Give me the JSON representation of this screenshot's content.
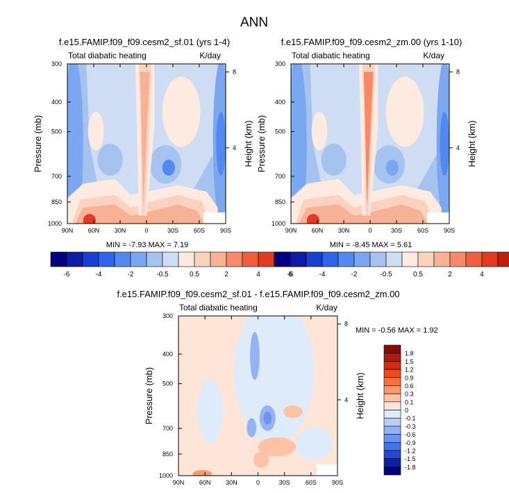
{
  "figure": {
    "main_title": "ANN"
  },
  "chart_data": [
    {
      "type": "heatmap",
      "title": "f.e15.FAMIP.f09_f09.cesm2_sf.01 (yrs 1-4)",
      "left_label": "Total diabatic heating",
      "units_label": "K/day",
      "xlabel": "",
      "ylabel": "Pressure (mb)",
      "right_ylabel": "Height (km)",
      "x_ticks": [
        "90N",
        "60N",
        "30N",
        "0",
        "30S",
        "60S",
        "90S"
      ],
      "xlim": [
        90,
        -90
      ],
      "y_ticks": [
        "300",
        "400",
        "500",
        "700",
        "850",
        "1000"
      ],
      "y_tick_values": [
        300,
        400,
        500,
        700,
        850,
        1000
      ],
      "ylim": [
        300,
        1000
      ],
      "right_ticks": [
        "8",
        "4"
      ],
      "right_tick_values": [
        8,
        4
      ],
      "stats": "MIN = -7.93   MAX =  7.19",
      "min": -7.93,
      "max": 7.19,
      "field": "mean"
    },
    {
      "type": "heatmap",
      "title": "f.e15.FAMIP.f09_f09.cesm2_zm.00 (yrs 1-10)",
      "left_label": "Total diabatic heating",
      "units_label": "K/day",
      "xlabel": "",
      "ylabel": "Pressure (mb)",
      "right_ylabel": "Height (km)",
      "x_ticks": [
        "90N",
        "60N",
        "30N",
        "0",
        "30S",
        "60S",
        "90S"
      ],
      "xlim": [
        90,
        -90
      ],
      "y_ticks": [
        "300",
        "400",
        "500",
        "700",
        "850",
        "1000"
      ],
      "y_tick_values": [
        300,
        400,
        500,
        700,
        850,
        1000
      ],
      "ylim": [
        300,
        1000
      ],
      "right_ticks": [
        "8",
        "4"
      ],
      "right_tick_values": [
        8,
        4
      ],
      "stats": "MIN = -8.45   MAX =  5.61",
      "min": -8.45,
      "max": 5.61,
      "field": "mean"
    },
    {
      "type": "heatmap",
      "title": "f.e15.FAMIP.f09_f09.cesm2_sf.01 - f.e15.FAMIP.f09_f09.cesm2_zm.00",
      "left_label": "Total diabatic heating",
      "units_label": "K/day",
      "xlabel": "",
      "ylabel": "Pressure (mb)",
      "right_ylabel": "Height (km)",
      "x_ticks": [
        "90N",
        "60N",
        "30N",
        "0",
        "30S",
        "60S",
        "90S"
      ],
      "xlim": [
        90,
        -90
      ],
      "y_ticks": [
        "300",
        "400",
        "500",
        "700",
        "850",
        "1000"
      ],
      "y_tick_values": [
        300,
        400,
        500,
        700,
        850,
        1000
      ],
      "ylim": [
        300,
        1000
      ],
      "right_ticks": [
        "8",
        "4"
      ],
      "right_tick_values": [
        8,
        4
      ],
      "stats": "MIN =  -0.56   MAX =   1.92",
      "min": -0.56,
      "max": 1.92,
      "field": "diff"
    }
  ],
  "colorbars": {
    "mean": {
      "labels": [
        "-6",
        "-4",
        "-2",
        "-0.5",
        "0.5",
        "2",
        "4",
        "6"
      ],
      "colors": [
        "#000080",
        "#0d1ba8",
        "#1a3fd0",
        "#2f64ea",
        "#5189f0",
        "#7ba7f0",
        "#a6c2ee",
        "#cfddf3",
        "#fdeae0",
        "#fad2bd",
        "#f7b196",
        "#f6896a",
        "#f05f3c",
        "#e03b1e",
        "#c02012",
        "#8b0a0a"
      ]
    },
    "diff": {
      "labels": [
        "1.8",
        "1.5",
        "1.2",
        "0.9",
        "0.6",
        "0.3",
        "0.1",
        "0",
        "-0.1",
        "-0.3",
        "-0.6",
        "-0.9",
        "-1.2",
        "-1.5",
        "-1.8"
      ],
      "colors": [
        "#8b0a0a",
        "#b31910",
        "#d62a10",
        "#f04a1e",
        "#f6723c",
        "#f9996c",
        "#fcc3a6",
        "#fde6d8",
        "#deebfa",
        "#b9cff6",
        "#93b3f2",
        "#6c94ee",
        "#4472ea",
        "#2049d8",
        "#0a22a8",
        "#000080"
      ]
    }
  }
}
